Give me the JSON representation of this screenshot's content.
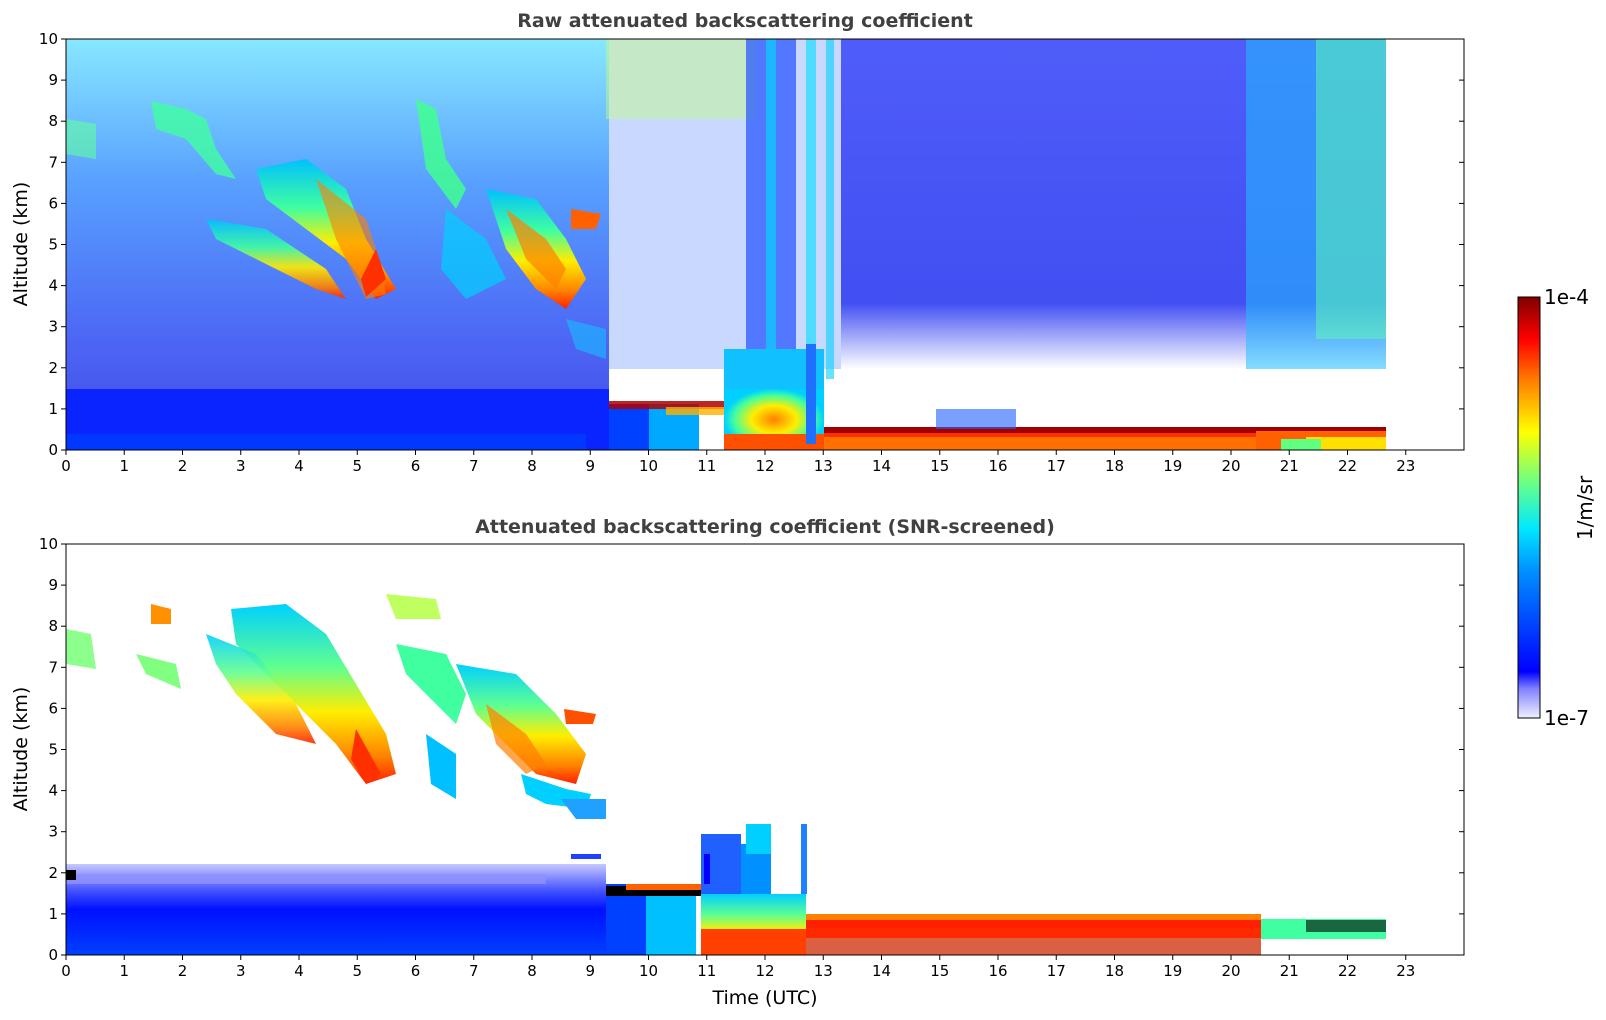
{
  "chart_data": [
    {
      "type": "heatmap",
      "title": "Raw attenuated backscattering coefficient",
      "xlabel": "",
      "ylabel": "Altitude (km)",
      "xlim": [
        0,
        24
      ],
      "ylim": [
        0,
        10
      ],
      "xticks": [
        "0",
        "1",
        "2",
        "3",
        "4",
        "5",
        "6",
        "7",
        "8",
        "9",
        "10",
        "11",
        "12",
        "13",
        "14",
        "15",
        "16",
        "17",
        "18",
        "19",
        "20",
        "21",
        "22",
        "23"
      ],
      "yticks": [
        "0",
        "1",
        "2",
        "3",
        "4",
        "5",
        "6",
        "7",
        "8",
        "9",
        "10"
      ],
      "data_end_time": 22.7,
      "features": [
        {
          "kind": "boundary_layer",
          "t0": 0,
          "t1": 9.2,
          "z0": 0,
          "z1": 1.35,
          "level": 0.25
        },
        {
          "kind": "aerosol_layer",
          "t0": 9.2,
          "t1": 11.2,
          "z0": 0,
          "z1": 1.0,
          "level": 0.45
        },
        {
          "kind": "cloud_base",
          "t0": 11.2,
          "t1": 13.1,
          "z0": 0,
          "z1": 0.5,
          "level": 0.85
        },
        {
          "kind": "convective_plume",
          "t0": 11.2,
          "t1": 13.1,
          "z0": 0.3,
          "z1": 2.3,
          "level": 0.4
        },
        {
          "kind": "fog_layer",
          "t0": 13.1,
          "t1": 22.7,
          "z0": 0,
          "z1": 0.35,
          "level": 0.9
        },
        {
          "kind": "virga",
          "t0": 0.3,
          "t1": 9.3,
          "z0": 3.0,
          "z1": 8.4,
          "level": 0.7
        }
      ]
    },
    {
      "type": "heatmap",
      "title": "Attenuated backscattering coefficient (SNR-screened)",
      "xlabel": "Time (UTC)",
      "ylabel": "Altitude (km)",
      "xlim": [
        0,
        24
      ],
      "ylim": [
        0,
        10
      ],
      "xticks": [
        "0",
        "1",
        "2",
        "3",
        "4",
        "5",
        "6",
        "7",
        "8",
        "9",
        "10",
        "11",
        "12",
        "13",
        "14",
        "15",
        "16",
        "17",
        "18",
        "19",
        "20",
        "21",
        "22",
        "23"
      ],
      "yticks": [
        "0",
        "1",
        "2",
        "3",
        "4",
        "5",
        "6",
        "7",
        "8",
        "9",
        "10"
      ],
      "data_end_time": 22.7
    }
  ],
  "colorbar": {
    "label": "1/m/sr",
    "max_label": "1e-4",
    "min_label": "1e-7",
    "colormap": [
      "#ffffff",
      "#0000ff",
      "#0080ff",
      "#00e0ff",
      "#40ff80",
      "#ffff00",
      "#ff8000",
      "#ff0000",
      "#800000"
    ]
  }
}
